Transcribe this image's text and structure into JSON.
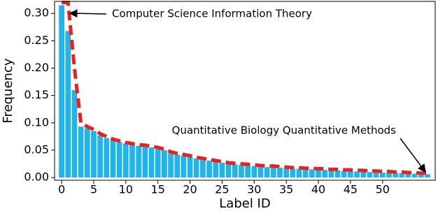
{
  "chart_data": {
    "type": "bar",
    "x": [
      0,
      1,
      2,
      3,
      4,
      5,
      6,
      7,
      8,
      9,
      10,
      11,
      12,
      13,
      14,
      15,
      16,
      17,
      18,
      19,
      20,
      21,
      22,
      23,
      24,
      25,
      26,
      27,
      28,
      29,
      30,
      31,
      32,
      33,
      34,
      35,
      36,
      37,
      38,
      39,
      40,
      41,
      42,
      43,
      44,
      45,
      46,
      47,
      48,
      49,
      50,
      51,
      52,
      53,
      54,
      55,
      56,
      57
    ],
    "series": [
      {
        "type": "bar",
        "color": "#1fb4ea",
        "values": [
          0.315,
          0.268,
          0.16,
          0.093,
          0.09,
          0.085,
          0.077,
          0.072,
          0.068,
          0.065,
          0.062,
          0.06,
          0.058,
          0.057,
          0.055,
          0.052,
          0.05,
          0.045,
          0.042,
          0.04,
          0.038,
          0.035,
          0.033,
          0.031,
          0.029,
          0.027,
          0.025,
          0.024,
          0.023,
          0.022,
          0.021,
          0.02,
          0.019,
          0.019,
          0.018,
          0.017,
          0.016,
          0.016,
          0.015,
          0.015,
          0.014,
          0.014,
          0.013,
          0.013,
          0.012,
          0.012,
          0.011,
          0.011,
          0.01,
          0.01,
          0.009,
          0.009,
          0.008,
          0.008,
          0.007,
          0.007,
          0.006,
          0.006
        ]
      },
      {
        "type": "line",
        "color": "#e8201e",
        "values": [
          0.32,
          0.32,
          0.2,
          0.1,
          0.093,
          0.088,
          0.08,
          0.075,
          0.07,
          0.067,
          0.064,
          0.062,
          0.06,
          0.059,
          0.057,
          0.055,
          0.052,
          0.047,
          0.044,
          0.042,
          0.04,
          0.037,
          0.035,
          0.033,
          0.031,
          0.029,
          0.027,
          0.026,
          0.025,
          0.024,
          0.023,
          0.022,
          0.021,
          0.021,
          0.02,
          0.019,
          0.018,
          0.018,
          0.017,
          0.017,
          0.016,
          0.016,
          0.015,
          0.015,
          0.014,
          0.014,
          0.013,
          0.013,
          0.012,
          0.012,
          0.011,
          0.011,
          0.01,
          0.01,
          0.009,
          0.009,
          0.008,
          0.008
        ]
      }
    ],
    "x_label": "Label ID",
    "y_label": "Frequency",
    "xlim": [
      -1.1,
      58.2
    ],
    "ylim": [
      -0.005,
      0.322
    ],
    "xticks": [
      0,
      5,
      10,
      15,
      20,
      25,
      30,
      35,
      40,
      45,
      50
    ],
    "yticks": [
      {
        "value": 0,
        "label": "0.00"
      },
      {
        "value": 0.05,
        "label": "0.05"
      },
      {
        "value": 0.1,
        "label": "0.10"
      },
      {
        "value": 0.15,
        "label": "0.15"
      },
      {
        "value": 0.2,
        "label": "0.20"
      },
      {
        "value": 0.25,
        "label": "0.25"
      },
      {
        "value": 0.3,
        "label": "0.30"
      }
    ],
    "annotations": [
      {
        "text": "Computer Science Information Theory"
      },
      {
        "text": "Quantitative Biology Quantitative Methods"
      }
    ]
  }
}
